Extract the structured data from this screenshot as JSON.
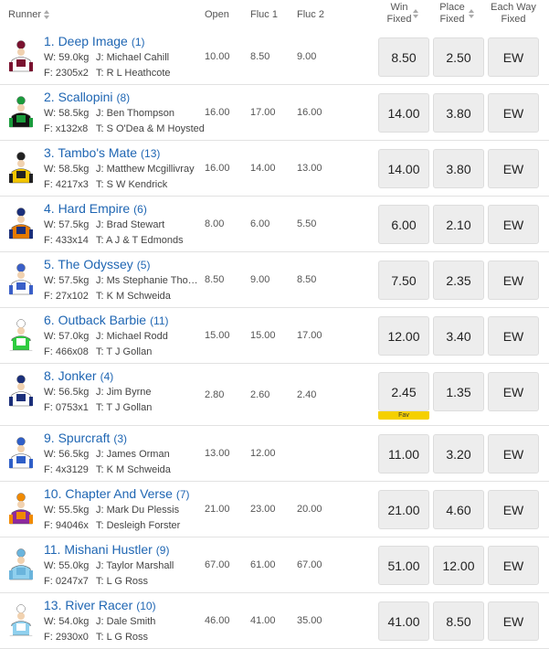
{
  "header": {
    "runner": "Runner",
    "open": "Open",
    "fluc1": "Fluc 1",
    "fluc2": "Fluc 2",
    "win": "Win Fixed",
    "place": "Place Fixed",
    "each_way": "Each Way Fixed"
  },
  "rows": [
    {
      "name": "1. Deep Image",
      "barrier": "(1)",
      "weight": "W: 59.0kg",
      "jockey": "J: Michael Cahill",
      "form": "F: 2305x2",
      "trainer": "T: R L Heathcote",
      "open": "10.00",
      "fluc1": "8.50",
      "fluc2": "9.00",
      "win": "8.50",
      "place": "2.50",
      "ew": "EW"
    },
    {
      "name": "2. Scallopini",
      "barrier": "(8)",
      "weight": "W: 58.5kg",
      "jockey": "J: Ben Thompson",
      "form": "F: x132x8",
      "trainer": "T: S O'Dea & M Hoysted",
      "open": "16.00",
      "fluc1": "17.00",
      "fluc2": "16.00",
      "win": "14.00",
      "place": "3.80",
      "ew": "EW"
    },
    {
      "name": "3. Tambo's Mate",
      "barrier": "(13)",
      "weight": "W: 58.5kg",
      "jockey": "J: Matthew Mcgillivray",
      "form": "F: 4217x3",
      "trainer": "T: S W Kendrick",
      "open": "16.00",
      "fluc1": "14.00",
      "fluc2": "13.00",
      "win": "14.00",
      "place": "3.80",
      "ew": "EW"
    },
    {
      "name": "4. Hard Empire",
      "barrier": "(6)",
      "weight": "W: 57.5kg",
      "jockey": "J: Brad Stewart",
      "form": "F: 433x14",
      "trainer": "T: A J & T Edmonds",
      "open": "8.00",
      "fluc1": "6.00",
      "fluc2": "5.50",
      "win": "6.00",
      "place": "2.10",
      "ew": "EW"
    },
    {
      "name": "5. The Odyssey",
      "barrier": "(5)",
      "weight": "W: 57.5kg",
      "jockey": "J: Ms Stephanie Tho…",
      "form": "F: 27x102",
      "trainer": "T: K M Schweida",
      "open": "8.50",
      "fluc1": "9.00",
      "fluc2": "8.50",
      "win": "7.50",
      "place": "2.35",
      "ew": "EW"
    },
    {
      "name": "6. Outback Barbie",
      "barrier": "(11)",
      "weight": "W: 57.0kg",
      "jockey": "J: Michael Rodd",
      "form": "F: 466x08",
      "trainer": "T: T J Gollan",
      "open": "15.00",
      "fluc1": "15.00",
      "fluc2": "17.00",
      "win": "12.00",
      "place": "3.40",
      "ew": "EW"
    },
    {
      "name": "8. Jonker",
      "barrier": "(4)",
      "weight": "W: 56.5kg",
      "jockey": "J: Jim Byrne",
      "form": "F: 0753x1",
      "trainer": "T: T J Gollan",
      "open": "2.80",
      "fluc1": "2.60",
      "fluc2": "2.40",
      "win": "2.45",
      "place": "1.35",
      "ew": "EW",
      "fav": "Fav"
    },
    {
      "name": "9. Spurcraft",
      "barrier": "(3)",
      "weight": "W: 56.5kg",
      "jockey": "J: James Orman",
      "form": "F: 4x3129",
      "trainer": "T: K M Schweida",
      "open": "13.00",
      "fluc1": "12.00",
      "win": "11.00",
      "place": "3.20",
      "ew": "EW"
    },
    {
      "name": "10. Chapter And Verse",
      "barrier": "(7)",
      "weight": "W: 55.5kg",
      "jockey": "J: Mark Du Plessis",
      "form": "F: 94046x",
      "trainer": "T: Desleigh Forster",
      "open": "21.00",
      "fluc1": "23.00",
      "fluc2": "20.00",
      "win": "21.00",
      "place": "4.60",
      "ew": "EW"
    },
    {
      "name": "11. Mishani Hustler",
      "barrier": "(9)",
      "weight": "W: 55.0kg",
      "jockey": "J: Taylor Marshall",
      "form": "F: 0247x7",
      "trainer": "T: L G Ross",
      "open": "67.00",
      "fluc1": "61.00",
      "fluc2": "67.00",
      "win": "51.00",
      "place": "12.00",
      "ew": "EW"
    },
    {
      "name": "13. River Racer",
      "barrier": "(10)",
      "weight": "W: 54.0kg",
      "jockey": "J: Dale Smith",
      "form": "F: 2930x0",
      "trainer": "T: L G Ross",
      "open": "46.00",
      "fluc1": "41.00",
      "fluc2": "35.00",
      "win": "41.00",
      "place": "8.50",
      "ew": "EW"
    }
  ]
}
